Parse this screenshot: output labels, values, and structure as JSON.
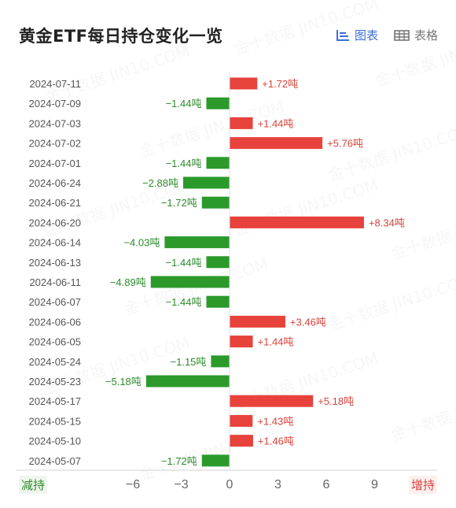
{
  "header": {
    "title": "黄金ETF每日持仓变化一览",
    "chart_view_label": "图表",
    "table_view_label": "表格"
  },
  "footer": {
    "decrease_label": "减持",
    "increase_label": "增持"
  },
  "colors": {
    "positive": "#e8423c",
    "negative": "#2b9a2b",
    "positive_text": "#d8433b",
    "negative_text": "#2c8a2c",
    "active_tab": "#3b6fd4"
  },
  "chart_data": {
    "type": "bar",
    "orientation": "horizontal",
    "unit": "吨",
    "categories": [
      "2024-07-11",
      "2024-07-09",
      "2024-07-03",
      "2024-07-02",
      "2024-07-01",
      "2024-06-24",
      "2024-06-21",
      "2024-06-20",
      "2024-06-14",
      "2024-06-13",
      "2024-06-11",
      "2024-06-07",
      "2024-06-06",
      "2024-06-05",
      "2024-05-24",
      "2024-05-23",
      "2024-05-17",
      "2024-05-15",
      "2024-05-10",
      "2024-05-07"
    ],
    "values": [
      1.72,
      -1.44,
      1.44,
      5.76,
      -1.44,
      -2.88,
      -1.72,
      8.34,
      -4.03,
      -1.44,
      -4.89,
      -1.44,
      3.46,
      1.44,
      -1.15,
      -5.18,
      5.18,
      1.43,
      1.46,
      -1.72
    ],
    "value_labels": [
      "+1.72吨",
      "−1.44吨",
      "+1.44吨",
      "+5.76吨",
      "−1.44吨",
      "−2.88吨",
      "−1.72吨",
      "+8.34吨",
      "−4.03吨",
      "−1.44吨",
      "−4.89吨",
      "−1.44吨",
      "+3.46吨",
      "+1.44吨",
      "−1.15吨",
      "−5.18吨",
      "+5.18吨",
      "+1.43吨",
      "+1.46吨",
      "−1.72吨"
    ],
    "xticks": [
      -6,
      -3,
      0,
      3,
      6,
      9
    ],
    "xtick_labels": [
      "−6",
      "−3",
      "0",
      "3",
      "6",
      "9"
    ],
    "xlim": [
      -7.5,
      10.5
    ],
    "grid": false,
    "watermark": "金十数据 JIN10.COM"
  }
}
